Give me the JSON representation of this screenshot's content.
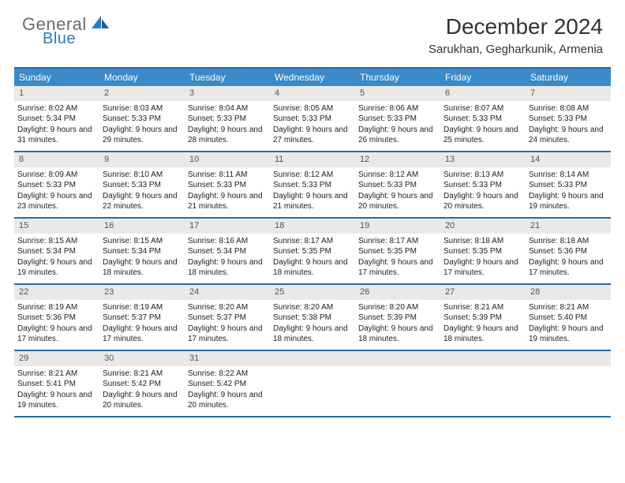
{
  "logo": {
    "part1": "General",
    "part2": "Blue"
  },
  "title": "December 2024",
  "location": "Sarukhan, Gegharkunik, Armenia",
  "colors": {
    "header_bg": "#3a8ac9",
    "border": "#2a6ca8",
    "daynum_bg": "#e9e9e9",
    "text": "#222222",
    "logo_gray": "#6b6b6b",
    "logo_blue": "#2a7bbf"
  },
  "weekdays": [
    "Sunday",
    "Monday",
    "Tuesday",
    "Wednesday",
    "Thursday",
    "Friday",
    "Saturday"
  ],
  "calendar": {
    "type": "table",
    "columns": 7,
    "rows": 5,
    "days": [
      {
        "n": 1,
        "sr": "8:02 AM",
        "ss": "5:34 PM",
        "dl": "9 hours and 31 minutes."
      },
      {
        "n": 2,
        "sr": "8:03 AM",
        "ss": "5:33 PM",
        "dl": "9 hours and 29 minutes."
      },
      {
        "n": 3,
        "sr": "8:04 AM",
        "ss": "5:33 PM",
        "dl": "9 hours and 28 minutes."
      },
      {
        "n": 4,
        "sr": "8:05 AM",
        "ss": "5:33 PM",
        "dl": "9 hours and 27 minutes."
      },
      {
        "n": 5,
        "sr": "8:06 AM",
        "ss": "5:33 PM",
        "dl": "9 hours and 26 minutes."
      },
      {
        "n": 6,
        "sr": "8:07 AM",
        "ss": "5:33 PM",
        "dl": "9 hours and 25 minutes."
      },
      {
        "n": 7,
        "sr": "8:08 AM",
        "ss": "5:33 PM",
        "dl": "9 hours and 24 minutes."
      },
      {
        "n": 8,
        "sr": "8:09 AM",
        "ss": "5:33 PM",
        "dl": "9 hours and 23 minutes."
      },
      {
        "n": 9,
        "sr": "8:10 AM",
        "ss": "5:33 PM",
        "dl": "9 hours and 22 minutes."
      },
      {
        "n": 10,
        "sr": "8:11 AM",
        "ss": "5:33 PM",
        "dl": "9 hours and 21 minutes."
      },
      {
        "n": 11,
        "sr": "8:12 AM",
        "ss": "5:33 PM",
        "dl": "9 hours and 21 minutes."
      },
      {
        "n": 12,
        "sr": "8:12 AM",
        "ss": "5:33 PM",
        "dl": "9 hours and 20 minutes."
      },
      {
        "n": 13,
        "sr": "8:13 AM",
        "ss": "5:33 PM",
        "dl": "9 hours and 20 minutes."
      },
      {
        "n": 14,
        "sr": "8:14 AM",
        "ss": "5:33 PM",
        "dl": "9 hours and 19 minutes."
      },
      {
        "n": 15,
        "sr": "8:15 AM",
        "ss": "5:34 PM",
        "dl": "9 hours and 19 minutes."
      },
      {
        "n": 16,
        "sr": "8:15 AM",
        "ss": "5:34 PM",
        "dl": "9 hours and 18 minutes."
      },
      {
        "n": 17,
        "sr": "8:16 AM",
        "ss": "5:34 PM",
        "dl": "9 hours and 18 minutes."
      },
      {
        "n": 18,
        "sr": "8:17 AM",
        "ss": "5:35 PM",
        "dl": "9 hours and 18 minutes."
      },
      {
        "n": 19,
        "sr": "8:17 AM",
        "ss": "5:35 PM",
        "dl": "9 hours and 17 minutes."
      },
      {
        "n": 20,
        "sr": "8:18 AM",
        "ss": "5:35 PM",
        "dl": "9 hours and 17 minutes."
      },
      {
        "n": 21,
        "sr": "8:18 AM",
        "ss": "5:36 PM",
        "dl": "9 hours and 17 minutes."
      },
      {
        "n": 22,
        "sr": "8:19 AM",
        "ss": "5:36 PM",
        "dl": "9 hours and 17 minutes."
      },
      {
        "n": 23,
        "sr": "8:19 AM",
        "ss": "5:37 PM",
        "dl": "9 hours and 17 minutes."
      },
      {
        "n": 24,
        "sr": "8:20 AM",
        "ss": "5:37 PM",
        "dl": "9 hours and 17 minutes."
      },
      {
        "n": 25,
        "sr": "8:20 AM",
        "ss": "5:38 PM",
        "dl": "9 hours and 18 minutes."
      },
      {
        "n": 26,
        "sr": "8:20 AM",
        "ss": "5:39 PM",
        "dl": "9 hours and 18 minutes."
      },
      {
        "n": 27,
        "sr": "8:21 AM",
        "ss": "5:39 PM",
        "dl": "9 hours and 18 minutes."
      },
      {
        "n": 28,
        "sr": "8:21 AM",
        "ss": "5:40 PM",
        "dl": "9 hours and 19 minutes."
      },
      {
        "n": 29,
        "sr": "8:21 AM",
        "ss": "5:41 PM",
        "dl": "9 hours and 19 minutes."
      },
      {
        "n": 30,
        "sr": "8:21 AM",
        "ss": "5:42 PM",
        "dl": "9 hours and 20 minutes."
      },
      {
        "n": 31,
        "sr": "8:22 AM",
        "ss": "5:42 PM",
        "dl": "9 hours and 20 minutes."
      }
    ],
    "labels": {
      "sunrise": "Sunrise:",
      "sunset": "Sunset:",
      "daylight": "Daylight:"
    }
  }
}
